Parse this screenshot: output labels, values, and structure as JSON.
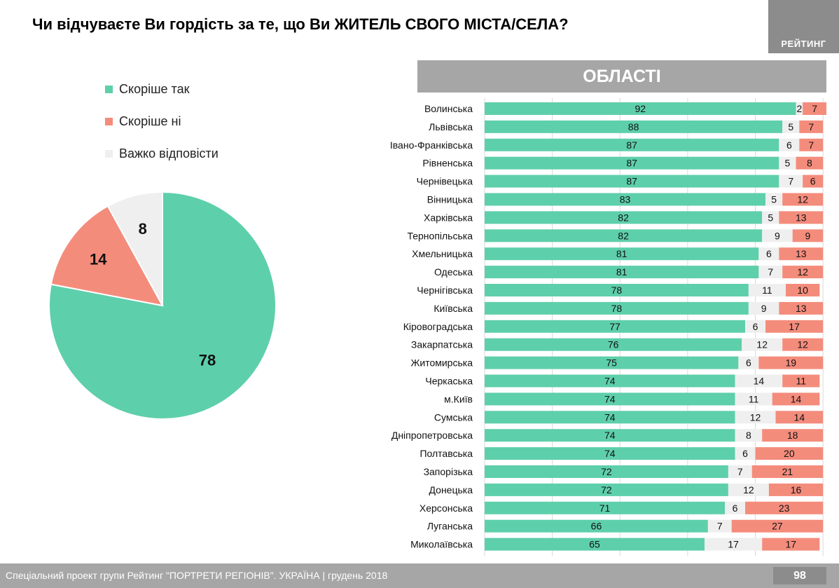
{
  "header": {
    "title": "Чи відчуваєте Ви гордість за те, що Ви ЖИТЕЛЬ СВОГО МІСТА/СЕЛА?",
    "brand": "РЕЙТИНГ"
  },
  "section_title": "ОБЛАСТІ",
  "legend": [
    {
      "label": "Скоріше так",
      "color": "#5ecfab"
    },
    {
      "label": "Скоріше ні",
      "color": "#f48c7c"
    },
    {
      "label": "Важко відповісти",
      "color": "#efefef"
    }
  ],
  "colors": {
    "yes": "#5ecfab",
    "no": "#f48c7c",
    "hard": "#efefef",
    "grid": "#d9d9d9"
  },
  "chart_data": [
    {
      "type": "pie",
      "slices": [
        {
          "name": "Скоріше так",
          "value": 78
        },
        {
          "name": "Скоріше ні",
          "value": 14
        },
        {
          "name": "Важко відповісти",
          "value": 8
        }
      ]
    },
    {
      "type": "bar",
      "orientation": "horizontal",
      "stacked": true,
      "title": "ОБЛАСТІ",
      "xlim": [
        0,
        100
      ],
      "grid": true,
      "categories": [
        "Волинська",
        "Львівська",
        "Івано-Франківська",
        "Рівненська",
        "Чернівецька",
        "Вінницька",
        "Харківська",
        "Тернопільська",
        "Хмельницька",
        "Одеська",
        "Чернігівська",
        "Київська",
        "Кіровоградська",
        "Закарпатська",
        "Житомирська",
        "Черкаська",
        "м.Київ",
        "Сумська",
        "Дніпропетровська",
        "Полтавська",
        "Запорізька",
        "Донецька",
        "Херсонська",
        "Луганська",
        "Миколаївська"
      ],
      "series": [
        {
          "name": "Скоріше так",
          "values": [
            92,
            88,
            87,
            87,
            87,
            83,
            82,
            82,
            81,
            81,
            78,
            78,
            77,
            76,
            75,
            74,
            74,
            74,
            74,
            74,
            72,
            72,
            71,
            66,
            65
          ]
        },
        {
          "name": "Важко відповісти",
          "values": [
            2,
            5,
            6,
            5,
            7,
            5,
            5,
            9,
            6,
            7,
            11,
            9,
            6,
            12,
            6,
            14,
            11,
            12,
            8,
            6,
            7,
            12,
            6,
            7,
            17
          ]
        },
        {
          "name": "Скоріше ні",
          "values": [
            7,
            7,
            7,
            8,
            6,
            12,
            13,
            9,
            13,
            12,
            10,
            13,
            17,
            12,
            19,
            11,
            14,
            14,
            18,
            20,
            21,
            16,
            23,
            27,
            17
          ]
        }
      ]
    }
  ],
  "footer": {
    "text": "Спеціальний проект групи Рейтинг \"ПОРТРЕТИ РЕГІОНІВ\". УКРАЇНА | грудень 2018",
    "page": "98"
  }
}
